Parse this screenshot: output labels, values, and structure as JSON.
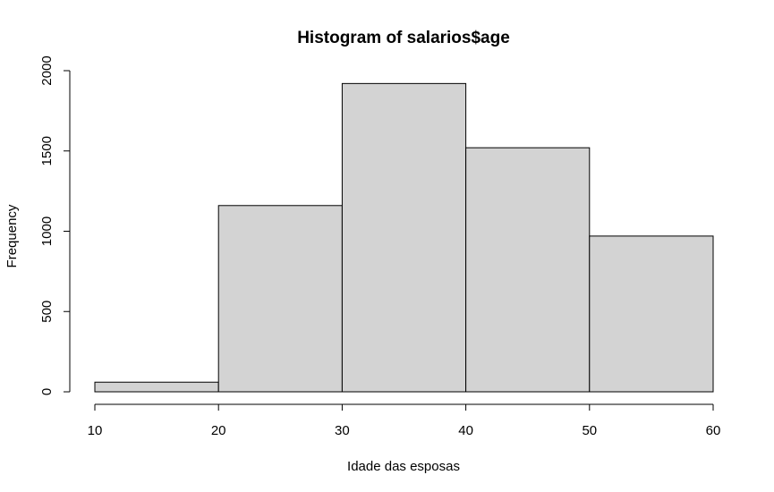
{
  "chart_data": {
    "type": "bar",
    "title": "Histogram of salarios$age",
    "xlabel": "Idade das esposas",
    "ylabel": "Frequency",
    "bins": [
      {
        "from": 10,
        "to": 20,
        "count": 60
      },
      {
        "from": 20,
        "to": 30,
        "count": 1160
      },
      {
        "from": 30,
        "to": 40,
        "count": 1920
      },
      {
        "from": 40,
        "to": 50,
        "count": 1520
      },
      {
        "from": 50,
        "to": 60,
        "count": 970
      }
    ],
    "xlim": [
      10,
      60
    ],
    "ylim": [
      0,
      2000
    ],
    "x_ticks": [
      "10",
      "20",
      "30",
      "40",
      "50",
      "60"
    ],
    "y_ticks": [
      "0",
      "500",
      "1000",
      "1500",
      "2000"
    ],
    "grid": false,
    "bar_fill": "#d3d3d3",
    "bar_stroke": "#000000"
  }
}
